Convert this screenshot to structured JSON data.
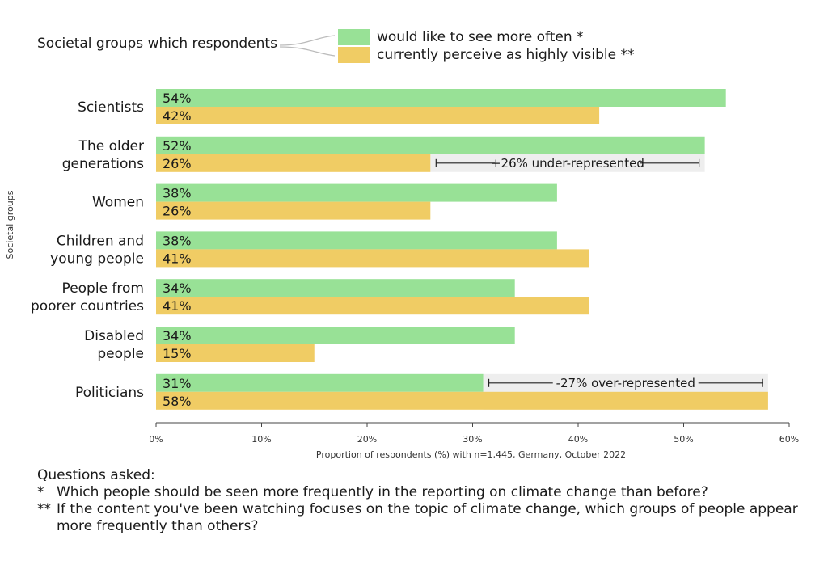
{
  "legend": {
    "title": "Societal groups which respondents",
    "items": [
      {
        "label": "would like to see more often *",
        "color": "#98e196"
      },
      {
        "label": "currently perceive as highly visible **",
        "color": "#f0cc64"
      }
    ]
  },
  "chart_data": {
    "type": "bar",
    "orientation": "horizontal",
    "ylabel": "Societal groups",
    "xlabel": "Proportion of respondents (%) with n=1,445, Germany, October 2022",
    "xlim": [
      0,
      60
    ],
    "xticks": [
      "0%",
      "10%",
      "20%",
      "30%",
      "40%",
      "50%",
      "60%"
    ],
    "categories": [
      [
        "Scientists"
      ],
      [
        "The older",
        "generations"
      ],
      [
        "Women"
      ],
      [
        "Children and",
        "young people"
      ],
      [
        "People from",
        "poorer countries"
      ],
      [
        "Disabled",
        "people"
      ],
      [
        "Politicians"
      ]
    ],
    "series": [
      {
        "name": "would like to see more often *",
        "color": "#98e196",
        "values": [
          54,
          52,
          38,
          38,
          34,
          34,
          31
        ],
        "labels": [
          "54%",
          "52%",
          "38%",
          "38%",
          "34%",
          "34%",
          "31%"
        ]
      },
      {
        "name": "currently perceive as highly visible **",
        "color": "#f0cc64",
        "values": [
          42,
          26,
          26,
          41,
          41,
          15,
          58
        ],
        "labels": [
          "42%",
          "26%",
          "26%",
          "41%",
          "41%",
          "15%",
          "58%"
        ]
      }
    ],
    "annotations": [
      {
        "category_index": 1,
        "from": 26,
        "to": 52,
        "text": "+26% under-represented"
      },
      {
        "category_index": 6,
        "from": 31,
        "to": 58,
        "text": "-27% over-represented"
      }
    ]
  },
  "notes": {
    "heading": "Questions asked:",
    "items": [
      {
        "mark": "*",
        "text": "Which people should be seen more frequently in the reporting on climate change than before?"
      },
      {
        "mark": "**",
        "text": "If the content you've been watching focuses on the topic of climate change, which groups of people appear more frequently than others?"
      }
    ]
  }
}
